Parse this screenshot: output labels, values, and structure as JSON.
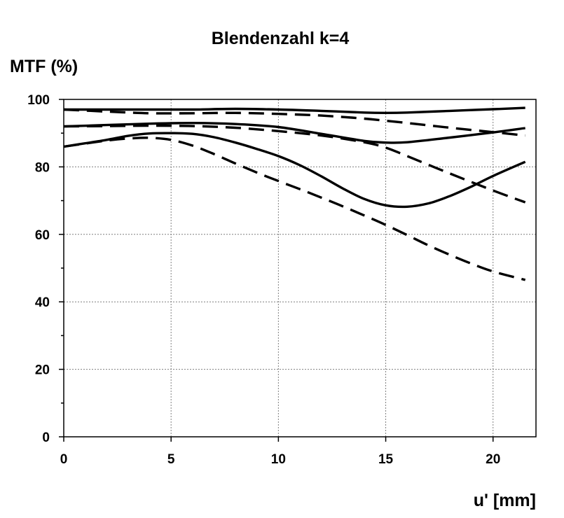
{
  "chart_data": {
    "type": "line",
    "title": "Blendenzahl k=4",
    "ylabel": "MTF (%)",
    "xlabel": "u' [mm]",
    "xlim": [
      0,
      22
    ],
    "ylim": [
      0,
      100
    ],
    "x_ticks": [
      0,
      5,
      10,
      15,
      20
    ],
    "y_ticks": [
      0,
      20,
      40,
      60,
      80,
      100
    ],
    "grid": true,
    "legend": "none",
    "line_color": "#000000",
    "series": [
      {
        "style": "solid",
        "x": [
          0,
          2,
          4,
          6,
          8,
          10,
          12,
          14,
          15,
          16,
          18,
          20,
          21.5
        ],
        "y": [
          97,
          97,
          97,
          97,
          97.2,
          97,
          96.6,
          96.1,
          96,
          96.1,
          96.6,
          97.1,
          97.5
        ]
      },
      {
        "style": "dashed",
        "x": [
          0,
          2,
          4,
          6,
          8,
          10,
          12,
          14,
          16,
          18,
          20,
          21.5
        ],
        "y": [
          97,
          96.4,
          95.9,
          95.9,
          96,
          95.7,
          95.2,
          94.3,
          93,
          91.6,
          90.3,
          89.3
        ]
      },
      {
        "style": "solid",
        "x": [
          0,
          2,
          4,
          6,
          8,
          10,
          12,
          14,
          15,
          16,
          18,
          20,
          21.5
        ],
        "y": [
          92,
          92.4,
          92.8,
          93,
          92.7,
          91.8,
          89.8,
          87.7,
          87.2,
          87.3,
          88.7,
          90.2,
          91.5
        ]
      },
      {
        "style": "dashed",
        "x": [
          0,
          2,
          4,
          6,
          8,
          10,
          12,
          14,
          15,
          16,
          18,
          20,
          21.5
        ],
        "y": [
          92,
          92.1,
          92.2,
          92.1,
          91.6,
          90.6,
          89.3,
          87.3,
          85.7,
          83.2,
          78,
          73,
          69.5
        ]
      },
      {
        "style": "solid",
        "x": [
          0,
          1,
          2,
          3,
          4,
          5,
          6,
          7,
          8,
          9,
          10,
          11,
          12,
          13,
          14,
          15,
          16,
          17,
          18,
          19,
          20,
          21.5
        ],
        "y": [
          86,
          87,
          88,
          89.2,
          89.9,
          90,
          89.8,
          88.8,
          87.2,
          85.3,
          83.2,
          80.5,
          77.2,
          73.6,
          70.5,
          68.6,
          68.2,
          69.2,
          71.4,
          74.2,
          77.3,
          81.5
        ]
      },
      {
        "style": "dashed",
        "x": [
          0,
          1,
          2,
          3,
          4,
          5,
          6,
          7,
          8,
          9,
          10,
          11,
          12,
          13,
          14,
          15,
          16,
          17,
          18,
          19,
          20,
          21.5
        ],
        "y": [
          86,
          86.9,
          87.8,
          88.4,
          88.6,
          88,
          86.3,
          83.8,
          81,
          78.3,
          75.8,
          73.4,
          70.9,
          68.3,
          65.6,
          62.8,
          59.8,
          56.7,
          53.9,
          51.3,
          49,
          46.5
        ]
      }
    ]
  }
}
